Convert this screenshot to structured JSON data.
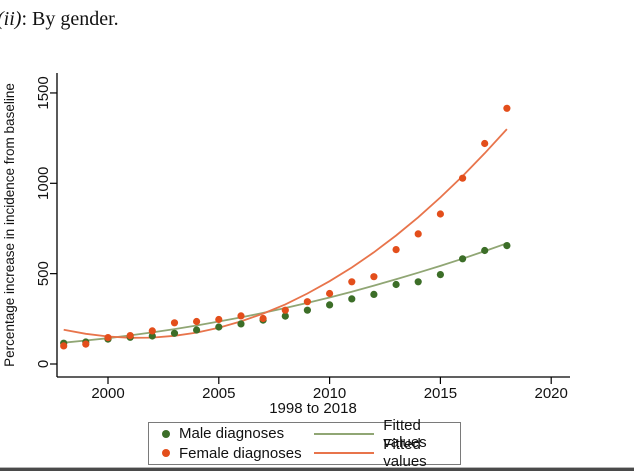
{
  "page": {
    "title_italic": "(ii)",
    "title_rest": ": By gender."
  },
  "chart_data": {
    "type": "scatter",
    "title": "",
    "xlabel": "1998 to 2018",
    "ylabel": "Percentage increase in incidence from baseline",
    "x_ticks": [
      "2000",
      "2005",
      "2010",
      "2015",
      "2020"
    ],
    "y_ticks": [
      "0",
      "500",
      "1000",
      "1500"
    ],
    "xlim": [
      1997.7,
      2020.8
    ],
    "ylim": [
      -70,
      1600
    ],
    "grid": "off",
    "legend_position": "bottom-center",
    "x": [
      1998,
      1999,
      2000,
      2001,
      2002,
      2003,
      2004,
      2005,
      2006,
      2007,
      2008,
      2009,
      2010,
      2011,
      2012,
      2013,
      2014,
      2015,
      2016,
      2017,
      2018
    ],
    "series": [
      {
        "name": "Male diagnoses",
        "kind": "scatter",
        "color": "#3c6e28",
        "values": [
          115,
          122,
          138,
          148,
          155,
          170,
          188,
          205,
          222,
          243,
          265,
          298,
          327,
          360,
          385,
          440,
          455,
          495,
          582,
          628,
          655
        ]
      },
      {
        "name": "Female diagnoses",
        "kind": "scatter",
        "color": "#e34e1b",
        "values": [
          100,
          110,
          146,
          157,
          183,
          228,
          235,
          246,
          266,
          252,
          298,
          345,
          390,
          455,
          483,
          633,
          720,
          830,
          1028,
          1220,
          1415
        ]
      },
      {
        "name": "Fitted values",
        "kind": "line",
        "color": "#90a674",
        "values": [
          118,
          130,
          143,
          158,
          175,
          193,
          213,
          235,
          258,
          283,
          310,
          338,
          368,
          400,
          434,
          469,
          505,
          543,
          583,
          625,
          668
        ]
      },
      {
        "name": "Fitted values",
        "kind": "line",
        "color": "#e8744b",
        "values": [
          190,
          167,
          152,
          145,
          146,
          156,
          174,
          201,
          236,
          279,
          330,
          390,
          458,
          534,
          618,
          711,
          812,
          922,
          1040,
          1166,
          1300
        ]
      }
    ]
  },
  "legend": {
    "rows": [
      {
        "marker_label": "Male diagnoses",
        "line_label": "Fitted values"
      },
      {
        "marker_label": "Female diagnoses",
        "line_label": "Fitted values"
      }
    ]
  }
}
